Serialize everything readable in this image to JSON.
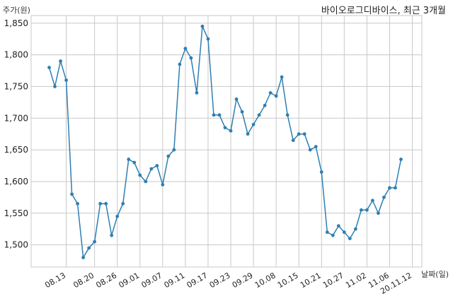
{
  "chart_data": {
    "type": "line",
    "title": "바이오로그디바이스, 최근 3개월",
    "xlabel": "날짜(일)",
    "ylabel": "주가(원)",
    "ylim": [
      1465,
      1862
    ],
    "yticks": [
      1500,
      1550,
      1600,
      1650,
      1700,
      1750,
      1800,
      1850
    ],
    "ytick_labels": [
      "1,500",
      "1,550",
      "1,600",
      "1,650",
      "1,700",
      "1,750",
      "1,800",
      "1,850"
    ],
    "xtick_labels": [
      "08.13",
      "08.20",
      "08.26",
      "09.01",
      "09.07",
      "09.11",
      "09.17",
      "09.23",
      "09.29",
      "10.08",
      "10.15",
      "10.21",
      "10.27",
      "11.02",
      "11.06",
      "20.11.12"
    ],
    "xtick_index": [
      3,
      8,
      12,
      16,
      20,
      24,
      28,
      32,
      36,
      40,
      44,
      48,
      52,
      56,
      60,
      64
    ],
    "grid": true,
    "color": "#2e7fb2",
    "series": [
      {
        "values": [
          1780,
          1750,
          1790,
          1760,
          1580,
          1565,
          1480,
          1495,
          1505,
          1565,
          1565,
          1515,
          1545,
          1565,
          1635,
          1630,
          1610,
          1600,
          1620,
          1625,
          1595,
          1640,
          1650,
          1785,
          1810,
          1795,
          1740,
          1845,
          1825,
          1705,
          1705,
          1685,
          1680,
          1730,
          1710,
          1675,
          1690,
          1705,
          1720,
          1740,
          1735,
          1765,
          1705,
          1665,
          1675,
          1675,
          1650,
          1655,
          1615,
          1520,
          1515,
          1530,
          1520,
          1510,
          1525,
          1555,
          1555,
          1570,
          1550,
          1575,
          1590,
          1590,
          1635
        ]
      }
    ]
  }
}
